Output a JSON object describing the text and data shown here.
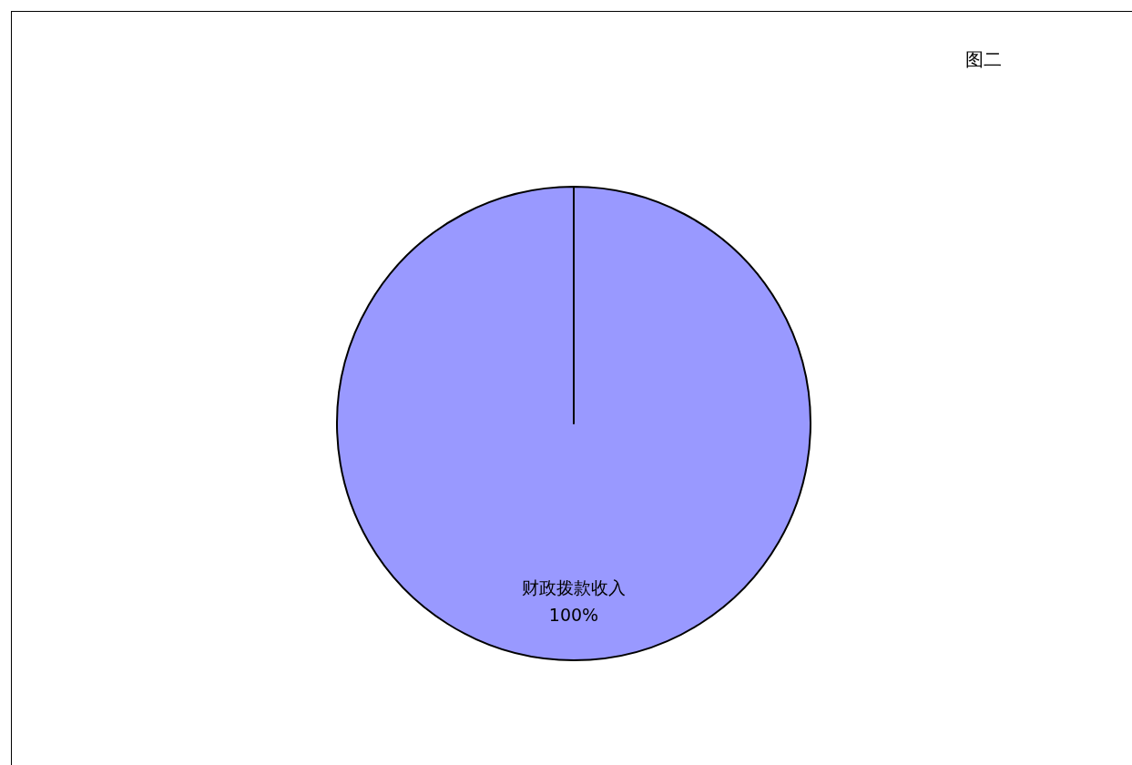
{
  "chart_data": {
    "type": "pie",
    "title": "图二",
    "categories": [
      "财政拨款收入"
    ],
    "values": [
      100
    ],
    "colors": [
      "#9999ff"
    ],
    "value_labels": [
      "100%"
    ]
  }
}
